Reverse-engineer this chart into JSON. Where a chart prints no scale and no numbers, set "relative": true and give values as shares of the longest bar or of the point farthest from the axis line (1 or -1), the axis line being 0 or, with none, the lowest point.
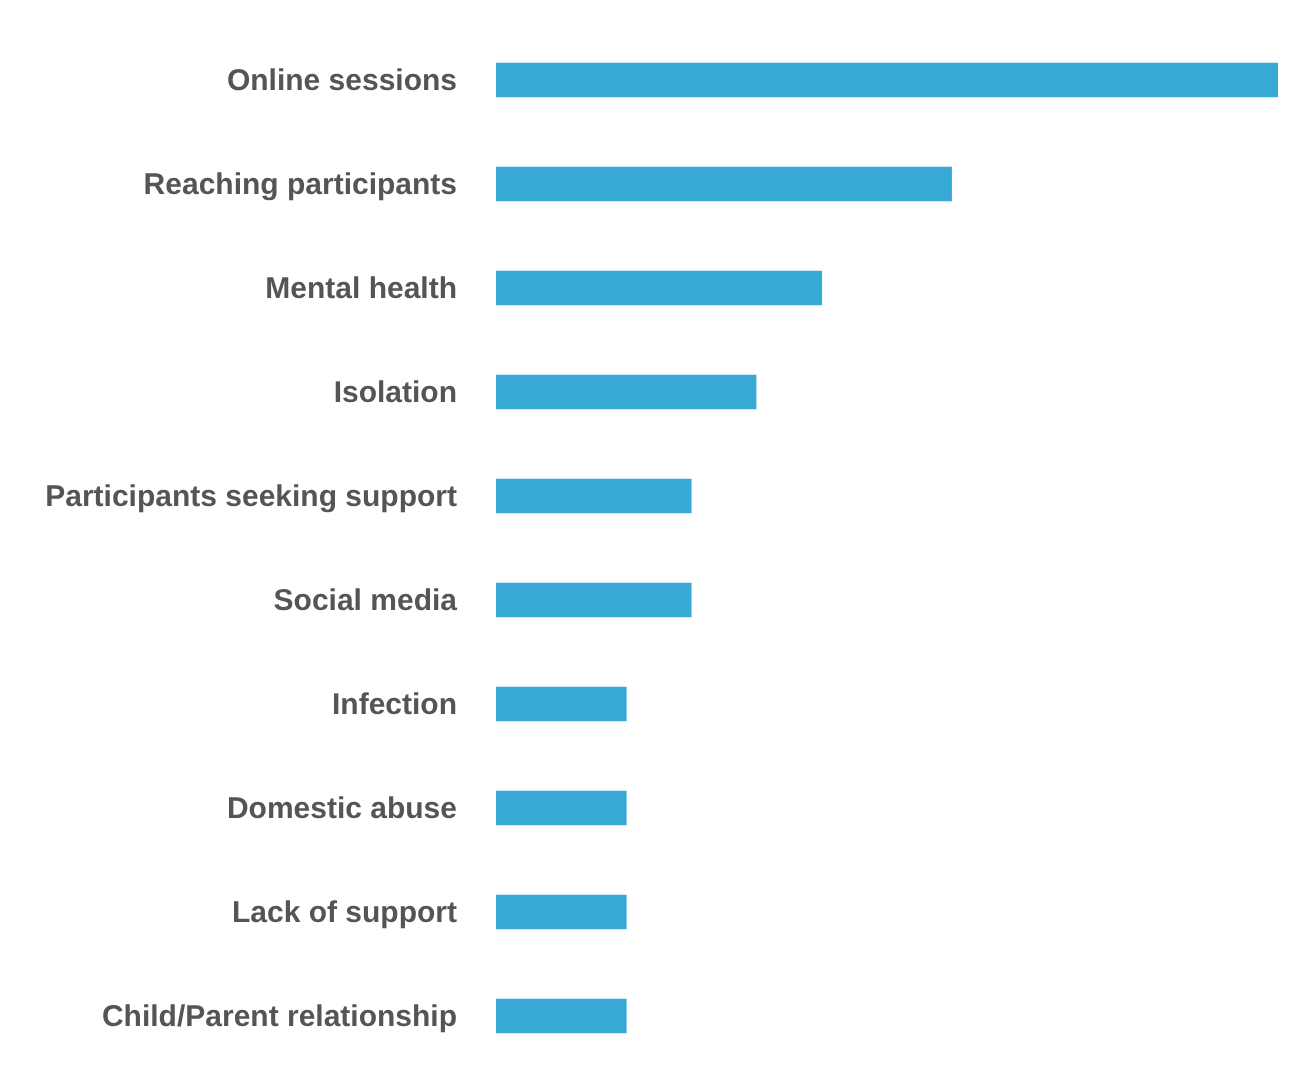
{
  "chart_data": {
    "type": "bar",
    "orientation": "horizontal",
    "relative": true,
    "categories": [
      "Online sessions",
      "Reaching participants",
      "Mental health",
      "Isolation",
      "Participants seeking support",
      "Social media",
      "Infection",
      "Domestic abuse",
      "Lack of support",
      "Child/Parent relationship"
    ],
    "values": [
      1,
      0.583,
      0.417,
      0.333,
      0.25,
      0.25,
      0.167,
      0.167,
      0.167,
      0.167
    ],
    "color": "#36a9d4"
  }
}
